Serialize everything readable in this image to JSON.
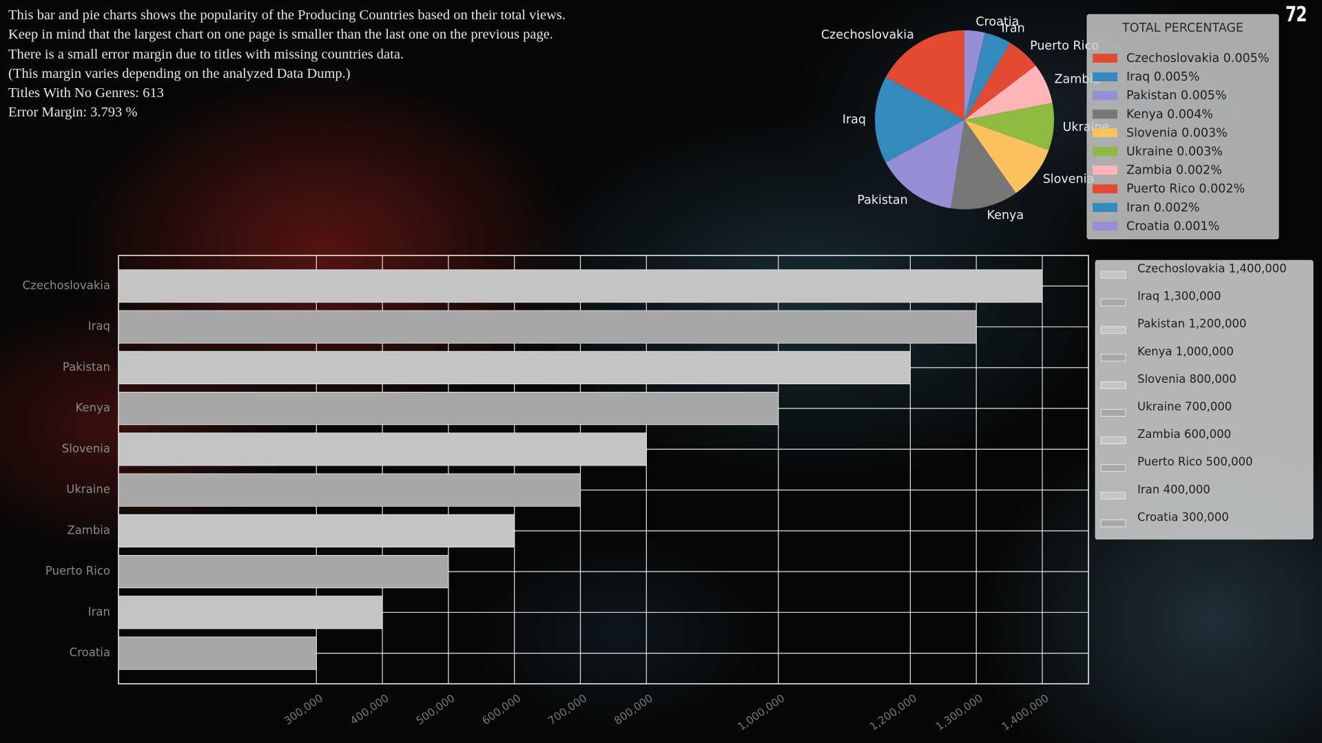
{
  "page_number": "72",
  "intro_lines": [
    "This bar and pie charts shows the popularity of the Producing Countries based on their total views.",
    "Keep in mind that the largest chart on one page is smaller than the last one on the previous page.",
    "There is a small error margin due to titles with missing countries data.",
    "(This margin varies depending on the analyzed Data Dump.)",
    "Titles With No Genres: 613",
    "Error Margin: 3.793 %"
  ],
  "chart_data": [
    {
      "type": "pie",
      "legend_title": "TOTAL PERCENTAGE",
      "legend_position": "right",
      "categories": [
        "Czechoslovakia",
        "Iraq",
        "Pakistan",
        "Kenya",
        "Slovenia",
        "Ukraine",
        "Zambia",
        "Puerto Rico",
        "Iran",
        "Croatia"
      ],
      "values": [
        1400000,
        1300000,
        1200000,
        1000000,
        800000,
        700000,
        600000,
        500000,
        400000,
        300000
      ],
      "percent_labels": [
        "0.005%",
        "0.005%",
        "0.005%",
        "0.004%",
        "0.003%",
        "0.003%",
        "0.002%",
        "0.002%",
        "0.002%",
        "0.001%"
      ],
      "legend_entries": [
        "Czechoslovakia 0.005%",
        "Iraq 0.005%",
        "Pakistan 0.005%",
        "Kenya 0.004%",
        "Slovenia 0.003%",
        "Ukraine 0.003%",
        "Zambia 0.002%",
        "Puerto Rico 0.002%",
        "Iran 0.002%",
        "Croatia 0.001%"
      ],
      "colors": [
        "#e24a33",
        "#348abd",
        "#988ed5",
        "#777777",
        "#fbc15e",
        "#8eba42",
        "#ffb5b8",
        "#e24a33",
        "#348abd",
        "#988ed5"
      ],
      "start_angle_deg": 90,
      "direction": "counterclockwise"
    },
    {
      "type": "bar",
      "orientation": "horizontal",
      "categories": [
        "Czechoslovakia",
        "Iraq",
        "Pakistan",
        "Kenya",
        "Slovenia",
        "Ukraine",
        "Zambia",
        "Puerto Rico",
        "Iran",
        "Croatia"
      ],
      "values": [
        1400000,
        1300000,
        1200000,
        1000000,
        800000,
        700000,
        600000,
        500000,
        400000,
        300000
      ],
      "xticks": [
        300000,
        400000,
        500000,
        600000,
        700000,
        800000,
        1000000,
        1200000,
        1300000,
        1400000
      ],
      "xtick_labels": [
        "300,000",
        "400,000",
        "500,000",
        "600,000",
        "700,000",
        "800,000",
        "1,000,000",
        "1,200,000",
        "1,300,000",
        "1,400,000"
      ],
      "xlim": [
        0,
        1470000
      ],
      "grid": true,
      "bar_colors": [
        "#c4c4c4",
        "#a8a8a8"
      ],
      "legend_position": "right",
      "legend_entries": [
        "Czechoslovakia 1,400,000",
        "Iraq 1,300,000",
        "Pakistan 1,200,000",
        "Kenya 1,000,000",
        "Slovenia 800,000",
        "Ukraine 700,000",
        "Zambia 600,000",
        "Puerto Rico 500,000",
        "Iran 400,000",
        "Croatia 300,000"
      ]
    }
  ]
}
